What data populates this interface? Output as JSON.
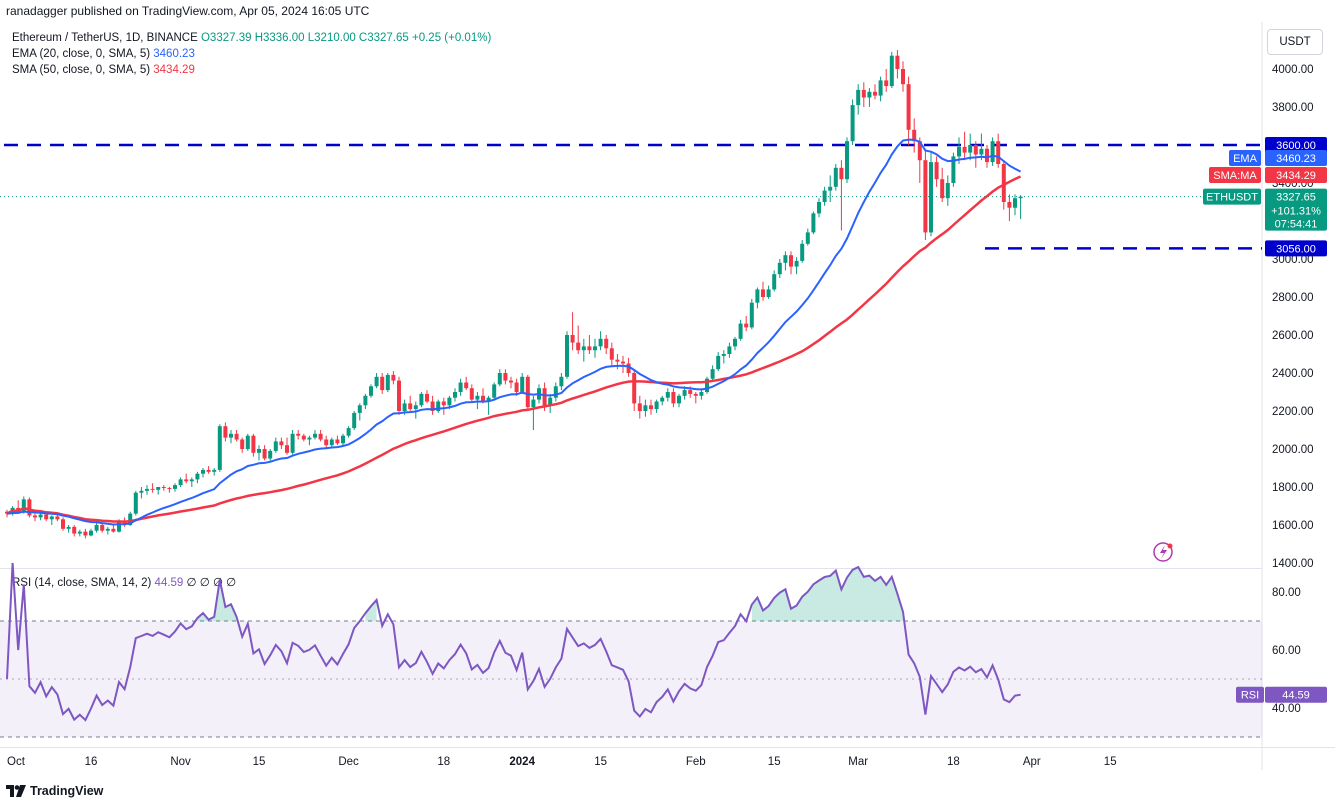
{
  "header": {
    "published": "ranadagger published on TradingView.com, Apr 05, 2024 16:05 UTC"
  },
  "legend": {
    "symbol": "Ethereum / TetherUS, 1D, BINANCE",
    "ohlc": "O3327.39 H3336.00 L3210.00 C3327.65 +0.25 (+0.01%)",
    "ema_label": "EMA (20, close, 0, SMA, 5)",
    "ema_value": "3460.23",
    "sma_label": "SMA (50, close, 0, SMA, 5)",
    "sma_value": "3434.29",
    "rsi_label": "RSI (14, close, SMA, 14, 2)",
    "rsi_value": "44.59",
    "rsi_extra": "∅ ∅ ∅ ∅"
  },
  "currency": "USDT",
  "footer_brand": "TradingView",
  "colors": {
    "up": "#089981",
    "down": "#f23645",
    "ema": "#2962ff",
    "sma": "#f23645",
    "rsi": "#7e57c2",
    "level": "#0000cc"
  },
  "tags": {
    "ema": {
      "name": "EMA",
      "value": "3460.23"
    },
    "sma": {
      "name": "SMA:MA",
      "value": "3434.29"
    },
    "price": {
      "name": "ETHUSDT",
      "value": "3327.65",
      "change": "+101.31%",
      "countdown": "07:54:41"
    },
    "level_high": "3600.00",
    "level_low": "3056.00",
    "rsi": {
      "name": "RSI",
      "value": "44.59"
    }
  },
  "chart_data": {
    "type": "candlestick",
    "price_axis": {
      "ticks": [
        "4000.00",
        "3800.00",
        "3600.00",
        "3400.00",
        "3200.00",
        "3000.00",
        "2800.00",
        "2600.00",
        "2400.00",
        "2200.00",
        "2000.00",
        "1800.00",
        "1600.00",
        "1400.00"
      ],
      "tick_values": [
        4000,
        3800,
        3600,
        3400,
        3200,
        3000,
        2800,
        2600,
        2400,
        2200,
        2000,
        1800,
        1600,
        1400
      ],
      "range": [
        1390,
        4110
      ]
    },
    "rsi_axis": {
      "ticks": [
        "80.00",
        "60.00",
        "40.00"
      ],
      "tick_values": [
        80,
        60,
        40
      ],
      "range": [
        25,
        92
      ],
      "band": [
        30,
        70
      ]
    },
    "time_axis": {
      "labels": [
        "Oct",
        "16",
        "Nov",
        "15",
        "Dec",
        "18",
        "2024",
        "15",
        "Feb",
        "15",
        "Mar",
        "18",
        "Apr",
        "15"
      ],
      "day_index": [
        0,
        15,
        31,
        45,
        61,
        78,
        92,
        106,
        123,
        137,
        152,
        169,
        183,
        197
      ]
    },
    "levels": [
      3600,
      3056
    ],
    "candles": [
      [
        1670,
        1680,
        1640,
        1660
      ],
      [
        1660,
        1700,
        1650,
        1690
      ],
      [
        1690,
        1730,
        1660,
        1670
      ],
      [
        1670,
        1750,
        1660,
        1735
      ],
      [
        1735,
        1745,
        1640,
        1650
      ],
      [
        1650,
        1660,
        1620,
        1640
      ],
      [
        1640,
        1670,
        1625,
        1655
      ],
      [
        1655,
        1670,
        1620,
        1630
      ],
      [
        1630,
        1650,
        1600,
        1645
      ],
      [
        1645,
        1660,
        1620,
        1630
      ],
      [
        1630,
        1640,
        1570,
        1580
      ],
      [
        1580,
        1600,
        1560,
        1590
      ],
      [
        1590,
        1600,
        1540,
        1555
      ],
      [
        1555,
        1575,
        1540,
        1565
      ],
      [
        1565,
        1580,
        1530,
        1545
      ],
      [
        1545,
        1580,
        1540,
        1570
      ],
      [
        1570,
        1620,
        1560,
        1600
      ],
      [
        1600,
        1610,
        1560,
        1570
      ],
      [
        1570,
        1590,
        1550,
        1580
      ],
      [
        1580,
        1600,
        1560,
        1565
      ],
      [
        1565,
        1630,
        1560,
        1620
      ],
      [
        1620,
        1640,
        1590,
        1600
      ],
      [
        1600,
        1670,
        1595,
        1660
      ],
      [
        1660,
        1780,
        1650,
        1770
      ],
      [
        1770,
        1800,
        1740,
        1780
      ],
      [
        1780,
        1810,
        1760,
        1790
      ],
      [
        1790,
        1820,
        1770,
        1785
      ],
      [
        1785,
        1800,
        1760,
        1800
      ],
      [
        1800,
        1810,
        1780,
        1795
      ],
      [
        1795,
        1800,
        1770,
        1790
      ],
      [
        1790,
        1820,
        1775,
        1810
      ],
      [
        1810,
        1850,
        1800,
        1840
      ],
      [
        1840,
        1870,
        1820,
        1830
      ],
      [
        1830,
        1850,
        1800,
        1840
      ],
      [
        1840,
        1880,
        1820,
        1870
      ],
      [
        1870,
        1900,
        1850,
        1890
      ],
      [
        1890,
        1910,
        1870,
        1880
      ],
      [
        1880,
        1900,
        1860,
        1890
      ],
      [
        1890,
        2130,
        1880,
        2120
      ],
      [
        2120,
        2140,
        2040,
        2060
      ],
      [
        2060,
        2100,
        2030,
        2080
      ],
      [
        2080,
        2100,
        2040,
        2050
      ],
      [
        2050,
        2060,
        1980,
        2000
      ],
      [
        2000,
        2080,
        1990,
        2070
      ],
      [
        2070,
        2080,
        1960,
        1980
      ],
      [
        1980,
        2020,
        1940,
        2000
      ],
      [
        2000,
        2020,
        1940,
        1950
      ],
      [
        1950,
        2000,
        1930,
        1990
      ],
      [
        1990,
        2060,
        1980,
        2040
      ],
      [
        2040,
        2060,
        2000,
        2020
      ],
      [
        2020,
        2060,
        1970,
        1980
      ],
      [
        1980,
        2100,
        1970,
        2080
      ],
      [
        2080,
        2100,
        2050,
        2070
      ],
      [
        2070,
        2080,
        2040,
        2050
      ],
      [
        2050,
        2070,
        2020,
        2060
      ],
      [
        2060,
        2100,
        2050,
        2080
      ],
      [
        2080,
        2100,
        2040,
        2050
      ],
      [
        2050,
        2070,
        2000,
        2020
      ],
      [
        2020,
        2060,
        2010,
        2050
      ],
      [
        2050,
        2070,
        2020,
        2030
      ],
      [
        2030,
        2080,
        2020,
        2070
      ],
      [
        2070,
        2120,
        2060,
        2110
      ],
      [
        2110,
        2200,
        2100,
        2190
      ],
      [
        2190,
        2240,
        2150,
        2230
      ],
      [
        2230,
        2290,
        2210,
        2280
      ],
      [
        2280,
        2340,
        2270,
        2330
      ],
      [
        2330,
        2400,
        2320,
        2380
      ],
      [
        2380,
        2400,
        2290,
        2310
      ],
      [
        2310,
        2400,
        2300,
        2390
      ],
      [
        2390,
        2410,
        2340,
        2360
      ],
      [
        2360,
        2380,
        2180,
        2200
      ],
      [
        2200,
        2260,
        2180,
        2240
      ],
      [
        2240,
        2280,
        2200,
        2210
      ],
      [
        2210,
        2250,
        2160,
        2230
      ],
      [
        2230,
        2300,
        2220,
        2290
      ],
      [
        2290,
        2310,
        2240,
        2250
      ],
      [
        2250,
        2280,
        2180,
        2200
      ],
      [
        2200,
        2260,
        2190,
        2250
      ],
      [
        2250,
        2270,
        2180,
        2230
      ],
      [
        2230,
        2280,
        2210,
        2270
      ],
      [
        2270,
        2320,
        2250,
        2300
      ],
      [
        2300,
        2370,
        2280,
        2350
      ],
      [
        2350,
        2380,
        2310,
        2320
      ],
      [
        2320,
        2340,
        2250,
        2260
      ],
      [
        2260,
        2300,
        2210,
        2280
      ],
      [
        2280,
        2320,
        2240,
        2250
      ],
      [
        2250,
        2280,
        2180,
        2270
      ],
      [
        2270,
        2350,
        2260,
        2340
      ],
      [
        2340,
        2420,
        2330,
        2400
      ],
      [
        2400,
        2420,
        2340,
        2360
      ],
      [
        2360,
        2380,
        2320,
        2350
      ],
      [
        2350,
        2370,
        2280,
        2300
      ],
      [
        2300,
        2400,
        2290,
        2380
      ],
      [
        2380,
        2390,
        2200,
        2220
      ],
      [
        2220,
        2280,
        2100,
        2260
      ],
      [
        2260,
        2340,
        2240,
        2320
      ],
      [
        2320,
        2350,
        2200,
        2230
      ],
      [
        2230,
        2290,
        2190,
        2270
      ],
      [
        2270,
        2350,
        2250,
        2330
      ],
      [
        2330,
        2400,
        2310,
        2380
      ],
      [
        2380,
        2620,
        2370,
        2600
      ],
      [
        2600,
        2720,
        2520,
        2560
      ],
      [
        2560,
        2650,
        2500,
        2520
      ],
      [
        2520,
        2580,
        2460,
        2540
      ],
      [
        2540,
        2600,
        2500,
        2520
      ],
      [
        2520,
        2580,
        2480,
        2540
      ],
      [
        2540,
        2620,
        2520,
        2580
      ],
      [
        2580,
        2600,
        2500,
        2530
      ],
      [
        2530,
        2560,
        2440,
        2470
      ],
      [
        2470,
        2500,
        2420,
        2460
      ],
      [
        2460,
        2490,
        2400,
        2450
      ],
      [
        2450,
        2480,
        2380,
        2400
      ],
      [
        2400,
        2420,
        2200,
        2240
      ],
      [
        2240,
        2280,
        2160,
        2200
      ],
      [
        2200,
        2260,
        2170,
        2230
      ],
      [
        2230,
        2260,
        2180,
        2210
      ],
      [
        2210,
        2260,
        2190,
        2250
      ],
      [
        2250,
        2280,
        2230,
        2270
      ],
      [
        2270,
        2320,
        2250,
        2300
      ],
      [
        2300,
        2320,
        2220,
        2240
      ],
      [
        2240,
        2290,
        2220,
        2280
      ],
      [
        2280,
        2330,
        2260,
        2310
      ],
      [
        2310,
        2330,
        2270,
        2290
      ],
      [
        2290,
        2300,
        2240,
        2280
      ],
      [
        2280,
        2320,
        2260,
        2300
      ],
      [
        2300,
        2380,
        2290,
        2370
      ],
      [
        2370,
        2440,
        2360,
        2420
      ],
      [
        2420,
        2510,
        2410,
        2490
      ],
      [
        2490,
        2520,
        2450,
        2500
      ],
      [
        2500,
        2560,
        2480,
        2540
      ],
      [
        2540,
        2590,
        2520,
        2580
      ],
      [
        2580,
        2680,
        2570,
        2660
      ],
      [
        2660,
        2700,
        2620,
        2640
      ],
      [
        2640,
        2790,
        2630,
        2770
      ],
      [
        2770,
        2850,
        2740,
        2840
      ],
      [
        2840,
        2880,
        2780,
        2800
      ],
      [
        2800,
        2860,
        2790,
        2840
      ],
      [
        2840,
        2940,
        2830,
        2920
      ],
      [
        2920,
        3000,
        2900,
        2980
      ],
      [
        2980,
        3040,
        2940,
        3020
      ],
      [
        3020,
        3040,
        2920,
        2960
      ],
      [
        2960,
        3010,
        2920,
        2990
      ],
      [
        2990,
        3100,
        2980,
        3080
      ],
      [
        3080,
        3160,
        3070,
        3140
      ],
      [
        3140,
        3250,
        3130,
        3240
      ],
      [
        3240,
        3320,
        3220,
        3300
      ],
      [
        3300,
        3380,
        3280,
        3360
      ],
      [
        3360,
        3440,
        3300,
        3380
      ],
      [
        3380,
        3500,
        3360,
        3480
      ],
      [
        3480,
        3520,
        3150,
        3420
      ],
      [
        3420,
        3640,
        3400,
        3620
      ],
      [
        3620,
        3840,
        3600,
        3810
      ],
      [
        3810,
        3920,
        3760,
        3890
      ],
      [
        3890,
        3930,
        3800,
        3850
      ],
      [
        3850,
        3900,
        3800,
        3880
      ],
      [
        3880,
        3920,
        3840,
        3860
      ],
      [
        3860,
        3960,
        3830,
        3940
      ],
      [
        3940,
        4000,
        3880,
        3910
      ],
      [
        3910,
        4090,
        3900,
        4070
      ],
      [
        4070,
        4100,
        3950,
        4000
      ],
      [
        4000,
        4040,
        3880,
        3920
      ],
      [
        3920,
        3960,
        3600,
        3680
      ],
      [
        3680,
        3740,
        3560,
        3620
      ],
      [
        3620,
        3640,
        3400,
        3520
      ],
      [
        3520,
        3580,
        3100,
        3140
      ],
      [
        3140,
        3560,
        3120,
        3510
      ],
      [
        3510,
        3540,
        3380,
        3420
      ],
      [
        3420,
        3480,
        3300,
        3320
      ],
      [
        3320,
        3440,
        3280,
        3400
      ],
      [
        3400,
        3560,
        3380,
        3540
      ],
      [
        3540,
        3640,
        3500,
        3590
      ],
      [
        3590,
        3670,
        3520,
        3560
      ],
      [
        3560,
        3660,
        3520,
        3600
      ],
      [
        3600,
        3620,
        3480,
        3550
      ],
      [
        3550,
        3660,
        3520,
        3580
      ],
      [
        3580,
        3600,
        3480,
        3510
      ],
      [
        3510,
        3640,
        3490,
        3620
      ],
      [
        3620,
        3660,
        3480,
        3500
      ],
      [
        3500,
        3520,
        3260,
        3300
      ],
      [
        3300,
        3340,
        3200,
        3270
      ],
      [
        3270,
        3340,
        3230,
        3320
      ],
      [
        3320,
        3336,
        3210,
        3328
      ]
    ],
    "ema20_last": 3460.23,
    "sma50_last": 3434.29,
    "rsi_last": 44.59
  }
}
